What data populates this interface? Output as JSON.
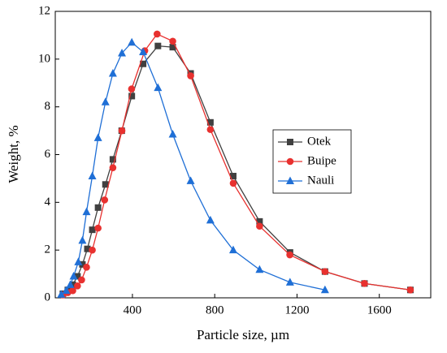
{
  "chart_data": {
    "type": "line",
    "x_label": "Particle size, µm",
    "y_label": "Weight, %",
    "xlim": [
      25,
      1850
    ],
    "ylim": [
      0,
      12
    ],
    "xticks": [
      400,
      800,
      1200,
      1600
    ],
    "yticks": [
      0,
      2,
      4,
      6,
      8,
      10,
      12
    ],
    "legend": "right",
    "series": [
      {
        "name": "Otek",
        "color": "#404040",
        "marker": "square",
        "x": [
          62,
          86,
          110,
          133,
          157,
          181,
          205,
          233,
          269,
          305,
          348,
          397,
          452,
          524,
          596,
          683,
          779,
          890,
          1018,
          1166,
          1336,
          1528,
          1751
        ],
        "values": [
          0.17,
          0.33,
          0.55,
          0.9,
          1.4,
          2.05,
          2.85,
          3.78,
          4.75,
          5.8,
          7.0,
          8.45,
          9.8,
          10.55,
          10.5,
          9.4,
          7.35,
          5.1,
          3.2,
          1.9,
          1.1,
          0.6,
          0.33
        ]
      },
      {
        "name": "Buipe",
        "color": "#e8312f",
        "marker": "circle",
        "x": [
          62,
          86,
          110,
          133,
          153,
          177,
          205,
          233,
          265,
          305,
          349,
          396,
          460,
          520,
          596,
          683,
          779,
          890,
          1018,
          1165,
          1336,
          1528,
          1751
        ],
        "values": [
          0.12,
          0.22,
          0.3,
          0.5,
          0.75,
          1.28,
          2.0,
          2.92,
          4.1,
          5.45,
          7.0,
          8.75,
          10.35,
          11.05,
          10.75,
          9.3,
          7.05,
          4.8,
          3.0,
          1.8,
          1.1,
          0.6,
          0.33
        ]
      },
      {
        "name": "Nauli",
        "color": "#1f6fd6",
        "marker": "triangle",
        "x": [
          54,
          78,
          98,
          114,
          137,
          157,
          177,
          205,
          233,
          269,
          305,
          349,
          397,
          452,
          524,
          596,
          683,
          779,
          890,
          1018,
          1166,
          1336
        ],
        "values": [
          0.14,
          0.3,
          0.55,
          0.9,
          1.5,
          2.4,
          3.6,
          5.1,
          6.7,
          8.2,
          9.4,
          10.25,
          10.7,
          10.3,
          8.8,
          6.85,
          4.9,
          3.25,
          2.0,
          1.18,
          0.65,
          0.33
        ]
      }
    ]
  }
}
